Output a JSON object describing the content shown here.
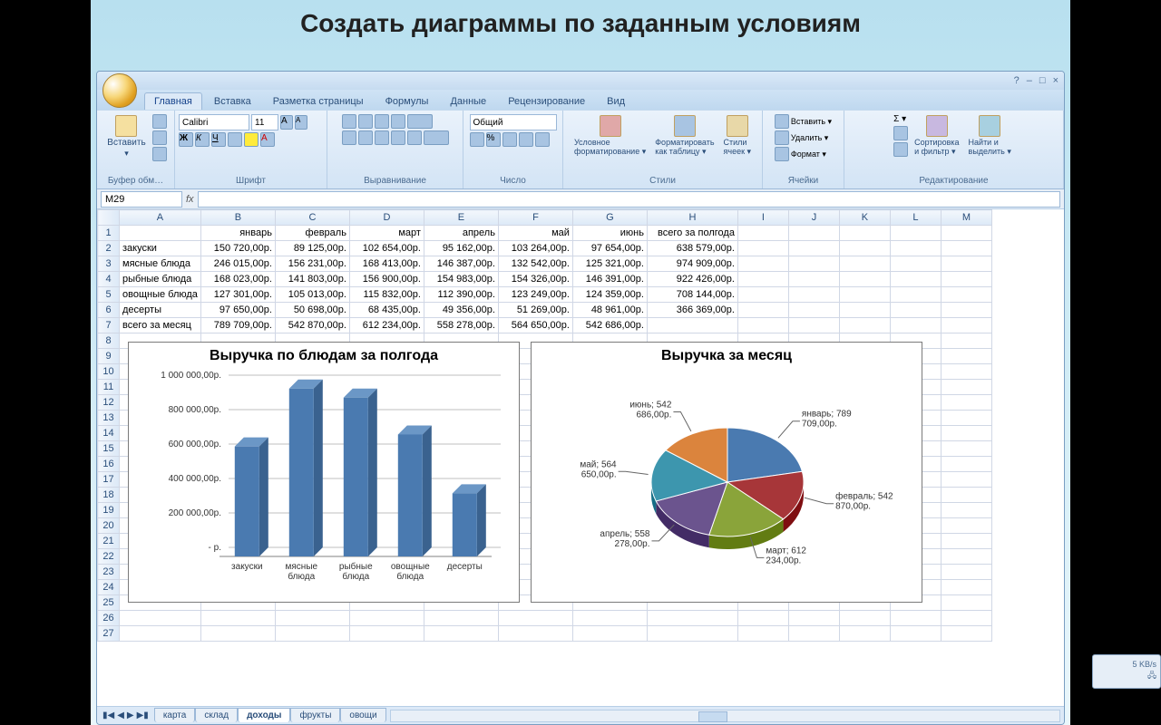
{
  "slide": {
    "title": "Создать диаграммы по заданным условиям"
  },
  "window": {
    "help": "?",
    "min": "–",
    "max": "□",
    "close": "×",
    "net_speed": "5 KB/s"
  },
  "ribbon": {
    "tabs": [
      "Главная",
      "Вставка",
      "Разметка страницы",
      "Формулы",
      "Данные",
      "Рецензирование",
      "Вид"
    ],
    "active_tab": 0,
    "groups": {
      "clipboard": {
        "paste": "Вставить",
        "label": "Буфер обм…"
      },
      "font": {
        "name": "Calibri",
        "size": "11",
        "bold": "Ж",
        "italic": "К",
        "underline": "Ч",
        "label": "Шрифт"
      },
      "align": {
        "label": "Выравнивание"
      },
      "number": {
        "format": "Общий",
        "label": "Число"
      },
      "styles": {
        "cond": "Условное\nформатирование ▾",
        "table": "Форматировать\nкак таблицу ▾",
        "cell": "Стили\nячеек ▾",
        "label": "Стили"
      },
      "cells": {
        "insert": "Вставить ▾",
        "delete": "Удалить ▾",
        "format": "Формат ▾",
        "label": "Ячейки"
      },
      "editing": {
        "sort": "Сортировка\nи фильтр ▾",
        "find": "Найти и\nвыделить ▾",
        "label": "Редактирование"
      }
    }
  },
  "formula": {
    "cell": "M29",
    "fx": "fx"
  },
  "table": {
    "col_headers": [
      "A",
      "B",
      "C",
      "D",
      "E",
      "F",
      "G",
      "H",
      "I",
      "J",
      "K",
      "L",
      "M"
    ],
    "header_row": [
      "",
      "январь",
      "февраль",
      "март",
      "апрель",
      "май",
      "июнь",
      "всего за полгода",
      "",
      "",
      "",
      "",
      ""
    ],
    "rows": [
      [
        "закуски",
        "150 720,00р.",
        "89 125,00р.",
        "102 654,00р.",
        "95 162,00р.",
        "103 264,00р.",
        "97 654,00р.",
        "638 579,00р."
      ],
      [
        "мясные блюда",
        "246 015,00р.",
        "156 231,00р.",
        "168 413,00р.",
        "146 387,00р.",
        "132 542,00р.",
        "125 321,00р.",
        "974 909,00р."
      ],
      [
        "рыбные блюда",
        "168 023,00р.",
        "141 803,00р.",
        "156 900,00р.",
        "154 983,00р.",
        "154 326,00р.",
        "146 391,00р.",
        "922 426,00р."
      ],
      [
        "овощные блюда",
        "127 301,00р.",
        "105 013,00р.",
        "115 832,00р.",
        "112 390,00р.",
        "123 249,00р.",
        "124 359,00р.",
        "708 144,00р."
      ],
      [
        "десерты",
        "97 650,00р.",
        "50 698,00р.",
        "68 435,00р.",
        "49 356,00р.",
        "51 269,00р.",
        "48 961,00р.",
        "366 369,00р."
      ],
      [
        "всего за месяц",
        "789 709,00р.",
        "542 870,00р.",
        "612 234,00р.",
        "558 278,00р.",
        "564 650,00р.",
        "542 686,00р.",
        ""
      ]
    ],
    "blank_rows": [
      8,
      9,
      10,
      11,
      12,
      13,
      14,
      15,
      16,
      17,
      18,
      19,
      20,
      21,
      22,
      23,
      24,
      25,
      26,
      27
    ]
  },
  "bar_chart": {
    "title": "Выручка по блюдам за полгода",
    "type": "bar",
    "categories": [
      "закуски",
      "мясные\nблюда",
      "рыбные\nблюда",
      "овощные\nблюда",
      "десерты"
    ],
    "values": [
      638579,
      974909,
      922426,
      708144,
      366369
    ],
    "y_ticks": [
      "1 000 000,00р.",
      "800 000,00р.",
      "600 000,00р.",
      "400 000,00р.",
      "200 000,00р.",
      "- р."
    ],
    "y_max": 1000000,
    "bar_color_front": "#4a7ab0",
    "bar_color_side": "#3a628f",
    "bar_color_top": "#6b97c6",
    "grid_color": "#bfbfbf",
    "axis_color": "#808080",
    "label_fontsize": 10,
    "title_fontsize": 16
  },
  "pie_chart": {
    "title": "Выручка за месяц",
    "type": "pie",
    "slices": [
      {
        "label": "январь; 789\n709,00р.",
        "value": 789709,
        "color": "#4a7ab0"
      },
      {
        "label": "февраль; 542\n870,00р.",
        "value": 542870,
        "color": "#a73639"
      },
      {
        "label": "март; 612\n234,00р.",
        "value": 612234,
        "color": "#8aa43a"
      },
      {
        "label": "апрель; 558\n278,00р.",
        "value": 558278,
        "color": "#6b548e"
      },
      {
        "label": "май; 564\n650,00р.",
        "value": 564650,
        "color": "#3d96ae"
      },
      {
        "label": "июнь; 542\n686,00р.",
        "value": 542686,
        "color": "#db843d"
      }
    ],
    "label_fontsize": 10,
    "title_fontsize": 16
  },
  "sheet_tabs": {
    "tabs": [
      "карта",
      "склад",
      "доходы",
      "фрукты",
      "овощи"
    ],
    "active": 2
  }
}
